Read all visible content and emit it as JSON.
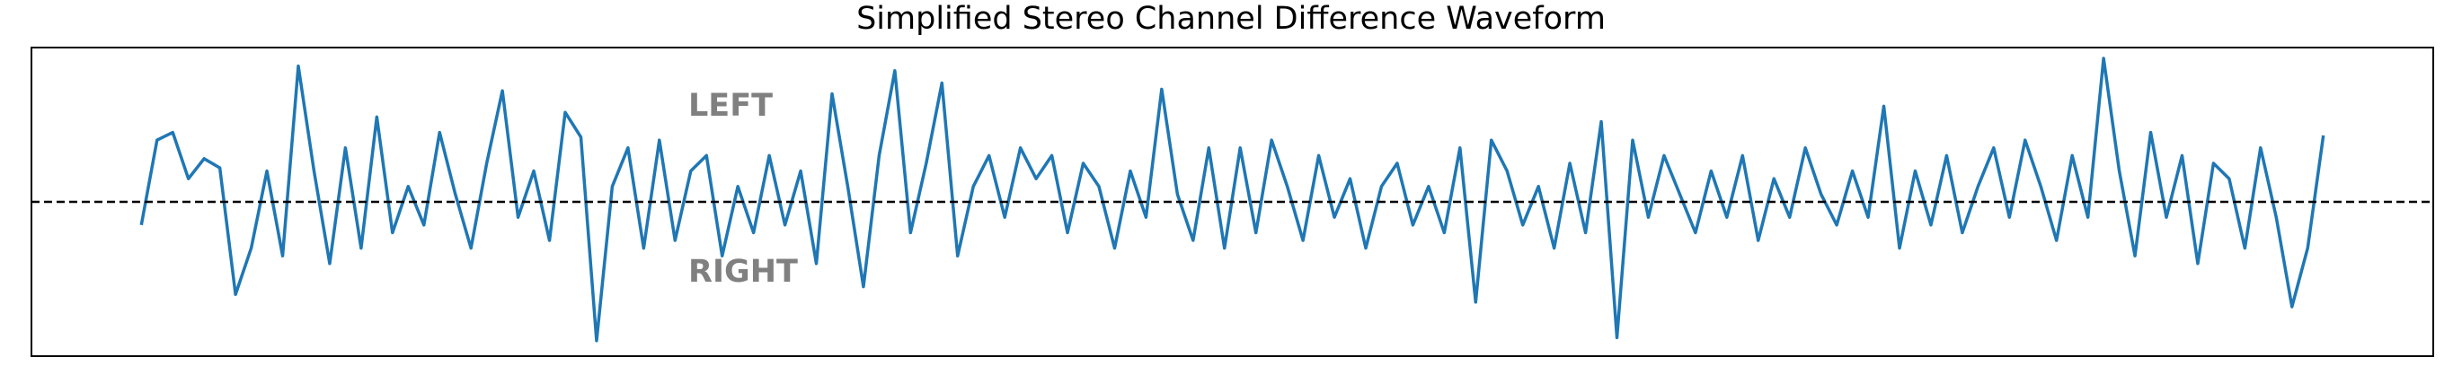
{
  "chart_data": {
    "type": "line",
    "title": "Simplified Stereo Channel Difference Waveform",
    "annotations": [
      "LEFT",
      "RIGHT"
    ],
    "color": "#1f77b4",
    "reference_line": 0,
    "xlim": [
      -7,
      146
    ],
    "ylim": [
      -1,
      1
    ],
    "values": [
      -0.15,
      0.4,
      0.45,
      0.15,
      0.28,
      0.22,
      -0.6,
      -0.3,
      0.2,
      -0.35,
      0.88,
      0.2,
      -0.4,
      0.35,
      -0.3,
      0.55,
      -0.2,
      0.1,
      -0.15,
      0.45,
      0.05,
      -0.3,
      0.25,
      0.72,
      -0.1,
      0.2,
      -0.25,
      0.58,
      0.42,
      -0.9,
      0.1,
      0.35,
      -0.3,
      0.4,
      -0.25,
      0.2,
      0.3,
      -0.35,
      0.1,
      -0.2,
      0.3,
      -0.15,
      0.2,
      -0.4,
      0.7,
      0.1,
      -0.55,
      0.3,
      0.85,
      -0.2,
      0.25,
      0.77,
      -0.35,
      0.1,
      0.3,
      -0.1,
      0.35,
      0.15,
      0.3,
      -0.2,
      0.25,
      0.1,
      -0.3,
      0.2,
      -0.1,
      0.73,
      0.05,
      -0.25,
      0.35,
      -0.3,
      0.35,
      -0.2,
      0.4,
      0.1,
      -0.25,
      0.3,
      -0.1,
      0.15,
      -0.3,
      0.1,
      0.25,
      -0.15,
      0.1,
      -0.2,
      0.35,
      -0.65,
      0.4,
      0.2,
      -0.15,
      0.1,
      -0.3,
      0.25,
      -0.2,
      0.52,
      -0.88,
      0.4,
      -0.1,
      0.3,
      0.05,
      -0.2,
      0.2,
      -0.1,
      0.3,
      -0.25,
      0.15,
      -0.1,
      0.35,
      0.05,
      -0.15,
      0.2,
      -0.1,
      0.62,
      -0.3,
      0.2,
      -0.15,
      0.3,
      -0.2,
      0.1,
      0.35,
      -0.1,
      0.4,
      0.1,
      -0.25,
      0.3,
      -0.1,
      0.93,
      0.2,
      -0.35,
      0.45,
      -0.1,
      0.3,
      -0.4,
      0.25,
      0.15,
      -0.3,
      0.35,
      -0.1,
      -0.68,
      -0.3,
      0.43
    ]
  }
}
